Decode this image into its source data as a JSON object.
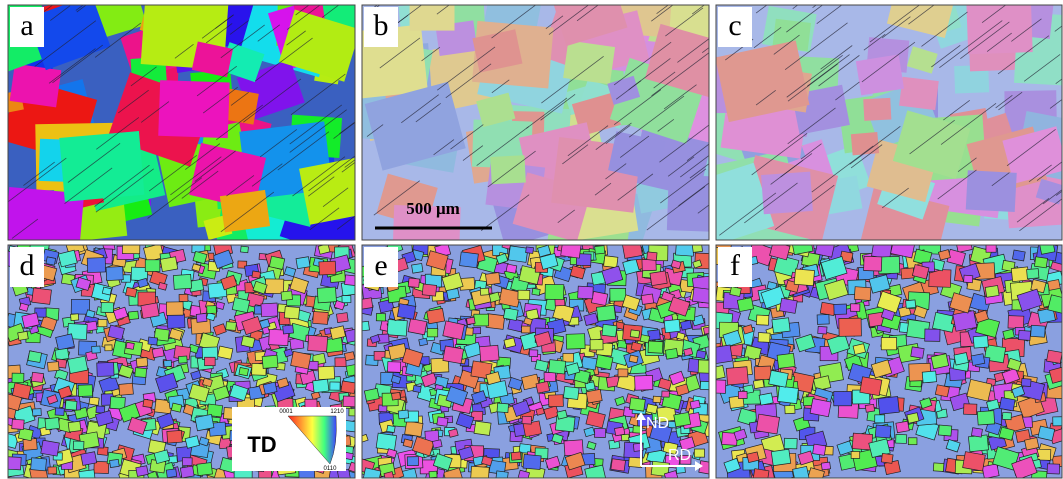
{
  "panels": [
    {
      "label": "a"
    },
    {
      "label": "b"
    },
    {
      "label": "c"
    },
    {
      "label": "d"
    },
    {
      "label": "e"
    },
    {
      "label": "f"
    }
  ],
  "scale_bar": "500 μm",
  "ipf_key": {
    "title": "TD",
    "corner_top_left": "0001",
    "corner_top_right": "1210",
    "corner_bottom": "0110"
  },
  "axes": {
    "vertical": "ND",
    "horizontal": "RD"
  }
}
